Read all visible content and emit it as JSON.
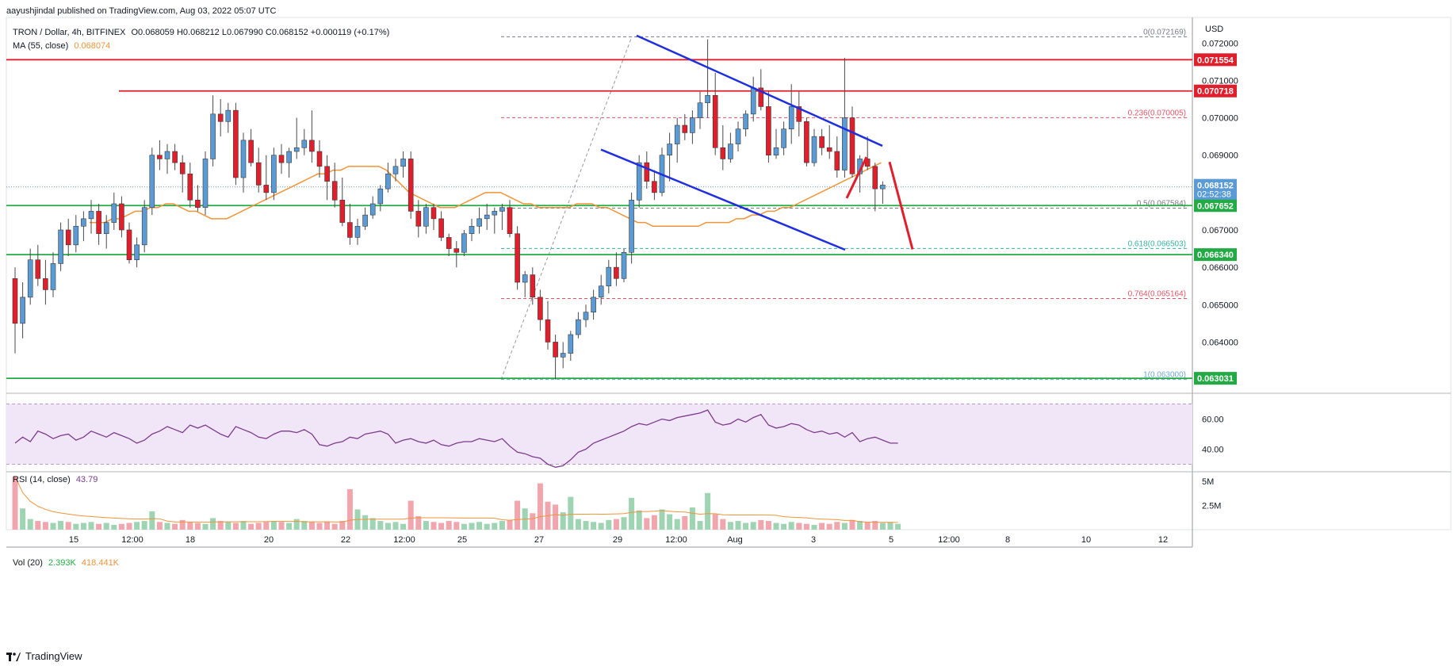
{
  "header": {
    "published": "aayushjindal published on TradingView.com, Aug 03, 2022 05:07 UTC"
  },
  "legend": {
    "symbol": "TRON / Dollar, 4h, BITFINEX",
    "ohlc": "O0.068059 H0.068212 L0.067990 C0.068152 +0.000119 (+0.17%)",
    "ma_label": "MA (55, close)",
    "ma_value": "0.068074",
    "rsi_label": "RSI (14, close)",
    "rsi_value": "43.79",
    "vol_label": "Vol (20)",
    "vol_value1": "2.393K",
    "vol_value2": "418.441K"
  },
  "footer": {
    "brand": "TradingView"
  },
  "colors": {
    "up": "#5b9bd5",
    "down": "#e01e2c",
    "ma": "#f0943a",
    "trend": "#1f2fe0",
    "support": "#22aa44",
    "resistance": "#e01e2c",
    "rsi": "#7b3b8c",
    "rsi_band": "#f1e6f8",
    "vol_up": "#9fd4b3",
    "vol_down": "#f1a6ad"
  },
  "chart_data": {
    "type": "candlestick",
    "symbol": "TRON / Dollar",
    "timeframe": "4h",
    "exchange": "BITFINEX",
    "currency": "USD",
    "ylim": [
      0.0628,
      0.0726
    ],
    "y_ticks": [
      "0.072000",
      "0.071000",
      "0.070000",
      "0.069000",
      "0.067000",
      "0.066000",
      "0.065000",
      "0.064000"
    ],
    "x_ticks": [
      "15",
      "12:00",
      "18",
      "20",
      "22",
      "12:00",
      "25",
      "27",
      "29",
      "12:00",
      "Aug",
      "3",
      "5",
      "12:00",
      "8",
      "10",
      "12"
    ],
    "candles": [
      [
        0.0657,
        0.066,
        0.0637,
        0.0645
      ],
      [
        0.0645,
        0.0656,
        0.0641,
        0.0652
      ],
      [
        0.0652,
        0.0665,
        0.065,
        0.0662
      ],
      [
        0.0662,
        0.0666,
        0.0655,
        0.0657
      ],
      [
        0.0657,
        0.0662,
        0.065,
        0.0654
      ],
      [
        0.0654,
        0.0664,
        0.0652,
        0.0661
      ],
      [
        0.0661,
        0.0672,
        0.0659,
        0.067
      ],
      [
        0.067,
        0.0673,
        0.0663,
        0.0666
      ],
      [
        0.0666,
        0.0674,
        0.0664,
        0.0671
      ],
      [
        0.0671,
        0.0675,
        0.0667,
        0.0673
      ],
      [
        0.0673,
        0.0678,
        0.0669,
        0.0675
      ],
      [
        0.0675,
        0.0677,
        0.0666,
        0.0669
      ],
      [
        0.0669,
        0.0674,
        0.0665,
        0.0672
      ],
      [
        0.0672,
        0.068,
        0.067,
        0.0677
      ],
      [
        0.0677,
        0.0679,
        0.0668,
        0.067
      ],
      [
        0.067,
        0.0672,
        0.0661,
        0.0662
      ],
      [
        0.0662,
        0.0668,
        0.066,
        0.0666
      ],
      [
        0.0666,
        0.0678,
        0.0664,
        0.0676
      ],
      [
        0.0676,
        0.0692,
        0.0674,
        0.069
      ],
      [
        0.069,
        0.0694,
        0.0686,
        0.0689
      ],
      [
        0.0689,
        0.0693,
        0.0685,
        0.0691
      ],
      [
        0.0691,
        0.0693,
        0.0686,
        0.0688
      ],
      [
        0.0688,
        0.069,
        0.068,
        0.0685
      ],
      [
        0.0685,
        0.0688,
        0.0676,
        0.0678
      ],
      [
        0.0678,
        0.0682,
        0.0675,
        0.0676
      ],
      [
        0.0676,
        0.0691,
        0.0674,
        0.0689
      ],
      [
        0.0689,
        0.0706,
        0.0687,
        0.0701
      ],
      [
        0.0701,
        0.0705,
        0.0695,
        0.0699
      ],
      [
        0.0699,
        0.0704,
        0.0696,
        0.0702
      ],
      [
        0.0702,
        0.0704,
        0.0682,
        0.0684
      ],
      [
        0.0684,
        0.0696,
        0.068,
        0.0694
      ],
      [
        0.0694,
        0.0697,
        0.0687,
        0.0688
      ],
      [
        0.0688,
        0.0692,
        0.068,
        0.0682
      ],
      [
        0.0682,
        0.069,
        0.0678,
        0.068
      ],
      [
        0.068,
        0.0692,
        0.0678,
        0.069
      ],
      [
        0.069,
        0.0693,
        0.0685,
        0.0688
      ],
      [
        0.0688,
        0.0692,
        0.0684,
        0.0691
      ],
      [
        0.0691,
        0.07,
        0.0689,
        0.0692
      ],
      [
        0.0692,
        0.0697,
        0.069,
        0.0694
      ],
      [
        0.0694,
        0.0702,
        0.0688,
        0.0691
      ],
      [
        0.0691,
        0.0694,
        0.0684,
        0.0687
      ],
      [
        0.0687,
        0.069,
        0.0678,
        0.0683
      ],
      [
        0.0683,
        0.0688,
        0.0676,
        0.0678
      ],
      [
        0.0678,
        0.0684,
        0.0671,
        0.0672
      ],
      [
        0.0672,
        0.0677,
        0.0666,
        0.0668
      ],
      [
        0.0668,
        0.0673,
        0.0666,
        0.0671
      ],
      [
        0.0671,
        0.0676,
        0.067,
        0.0674
      ],
      [
        0.0674,
        0.0679,
        0.0673,
        0.0677
      ],
      [
        0.0677,
        0.0682,
        0.0675,
        0.0681
      ],
      [
        0.0681,
        0.0688,
        0.068,
        0.0685
      ],
      [
        0.0685,
        0.0689,
        0.0683,
        0.0687
      ],
      [
        0.0687,
        0.0691,
        0.0684,
        0.0689
      ],
      [
        0.0689,
        0.0691,
        0.0673,
        0.0675
      ],
      [
        0.0675,
        0.0678,
        0.0668,
        0.0671
      ],
      [
        0.0671,
        0.0677,
        0.0669,
        0.0676
      ],
      [
        0.0676,
        0.0677,
        0.067,
        0.0673
      ],
      [
        0.0673,
        0.0675,
        0.0667,
        0.0668
      ],
      [
        0.0668,
        0.0669,
        0.0663,
        0.0665
      ],
      [
        0.0665,
        0.0667,
        0.066,
        0.0664
      ],
      [
        0.0664,
        0.067,
        0.0663,
        0.0669
      ],
      [
        0.0669,
        0.0673,
        0.0667,
        0.0671
      ],
      [
        0.0671,
        0.0676,
        0.0669,
        0.0673
      ],
      [
        0.0673,
        0.0677,
        0.067,
        0.0674
      ],
      [
        0.0674,
        0.0676,
        0.0669,
        0.0675
      ],
      [
        0.0675,
        0.0677,
        0.067,
        0.0676
      ],
      [
        0.0676,
        0.0678,
        0.0668,
        0.0669
      ],
      [
        0.0669,
        0.0671,
        0.0654,
        0.0656
      ],
      [
        0.0656,
        0.0659,
        0.0652,
        0.0658
      ],
      [
        0.0658,
        0.066,
        0.065,
        0.0652
      ],
      [
        0.0652,
        0.0654,
        0.0643,
        0.0646
      ],
      [
        0.0646,
        0.0651,
        0.0638,
        0.064
      ],
      [
        0.064,
        0.0642,
        0.063,
        0.0636
      ],
      [
        0.0636,
        0.064,
        0.0633,
        0.0637
      ],
      [
        0.0637,
        0.0643,
        0.0635,
        0.0642
      ],
      [
        0.0642,
        0.0648,
        0.0641,
        0.0646
      ],
      [
        0.0646,
        0.065,
        0.0644,
        0.0648
      ],
      [
        0.0648,
        0.0654,
        0.0646,
        0.0652
      ],
      [
        0.0652,
        0.0658,
        0.065,
        0.0655
      ],
      [
        0.0655,
        0.0662,
        0.0653,
        0.066
      ],
      [
        0.066,
        0.0664,
        0.0655,
        0.0657
      ],
      [
        0.0657,
        0.0665,
        0.0656,
        0.0664
      ],
      [
        0.0664,
        0.068,
        0.0661,
        0.0678
      ],
      [
        0.0678,
        0.069,
        0.0676,
        0.0688
      ],
      [
        0.0688,
        0.0691,
        0.0681,
        0.0683
      ],
      [
        0.0683,
        0.0686,
        0.0678,
        0.068
      ],
      [
        0.068,
        0.0692,
        0.0679,
        0.069
      ],
      [
        0.069,
        0.0696,
        0.0683,
        0.0693
      ],
      [
        0.0693,
        0.07,
        0.0688,
        0.0698
      ],
      [
        0.0698,
        0.0701,
        0.0694,
        0.0696
      ],
      [
        0.0696,
        0.0702,
        0.0693,
        0.07
      ],
      [
        0.07,
        0.0707,
        0.0697,
        0.0704
      ],
      [
        0.0704,
        0.0721,
        0.07,
        0.0706
      ],
      [
        0.0706,
        0.0712,
        0.069,
        0.0692
      ],
      [
        0.0692,
        0.0698,
        0.0686,
        0.0689
      ],
      [
        0.0689,
        0.0696,
        0.0688,
        0.0693
      ],
      [
        0.0693,
        0.0699,
        0.0691,
        0.0697
      ],
      [
        0.0697,
        0.0702,
        0.0695,
        0.0701
      ],
      [
        0.0701,
        0.0711,
        0.0699,
        0.0708
      ],
      [
        0.0708,
        0.0713,
        0.0702,
        0.0703
      ],
      [
        0.0703,
        0.0707,
        0.0688,
        0.069
      ],
      [
        0.069,
        0.0697,
        0.0689,
        0.0692
      ],
      [
        0.0692,
        0.0699,
        0.069,
        0.0697
      ],
      [
        0.0697,
        0.0709,
        0.0693,
        0.0703
      ],
      [
        0.0703,
        0.0707,
        0.0695,
        0.0699
      ],
      [
        0.0699,
        0.07,
        0.0687,
        0.0688
      ],
      [
        0.0688,
        0.0697,
        0.0687,
        0.0695
      ],
      [
        0.0695,
        0.0697,
        0.069,
        0.0692
      ],
      [
        0.0692,
        0.0698,
        0.0689,
        0.0691
      ],
      [
        0.0691,
        0.0695,
        0.0684,
        0.0686
      ],
      [
        0.0686,
        0.0716,
        0.0684,
        0.07
      ],
      [
        0.07,
        0.0703,
        0.0684,
        0.0685
      ],
      [
        0.0685,
        0.069,
        0.068,
        0.0689
      ],
      [
        0.0689,
        0.0695,
        0.0686,
        0.0687
      ],
      [
        0.0687,
        0.0688,
        0.0675,
        0.0681
      ],
      [
        0.0681,
        0.0683,
        0.0677,
        0.0682
      ]
    ],
    "ma_55": [
      0.0672,
      0.0672,
      0.0672,
      0.0673,
      0.0673,
      0.0674,
      0.0675,
      0.0675,
      0.0676,
      0.0676,
      0.0677,
      0.0677,
      0.0676,
      0.0675,
      0.0675,
      0.0674,
      0.0673,
      0.0673,
      0.0673,
      0.0674,
      0.0675,
      0.0676,
      0.0677,
      0.0678,
      0.0679,
      0.068,
      0.0681,
      0.0682,
      0.0683,
      0.0684,
      0.0685,
      0.0685,
      0.0686,
      0.0686,
      0.0687,
      0.0687,
      0.0687,
      0.0687,
      0.0687,
      0.0686,
      0.0684,
      0.0682,
      0.068,
      0.0679,
      0.0678,
      0.0677,
      0.0676,
      0.0676,
      0.0676,
      0.0677,
      0.0678,
      0.0679,
      0.068,
      0.068,
      0.068,
      0.0679,
      0.0678,
      0.0677,
      0.0677,
      0.0676,
      0.0676,
      0.0676,
      0.0676,
      0.0676,
      0.0677,
      0.0677,
      0.0677,
      0.0676,
      0.0676,
      0.0675,
      0.0674,
      0.0673,
      0.0672,
      0.0672,
      0.0671,
      0.0671,
      0.0671,
      0.0671,
      0.0671,
      0.0671,
      0.0671,
      0.0672,
      0.0672,
      0.0672,
      0.0672,
      0.0673,
      0.0673,
      0.0674,
      0.0674,
      0.0675,
      0.0675,
      0.0676,
      0.0676,
      0.0677,
      0.0678,
      0.0679,
      0.068,
      0.0681,
      0.0682,
      0.0683,
      0.0684,
      0.0685,
      0.0686,
      0.0687,
      0.0688
    ],
    "annotations": {
      "horizontal_levels": [
        {
          "label": "0.071554",
          "value": 0.071554,
          "kind": "resistance"
        },
        {
          "label": "0.070718",
          "value": 0.070718,
          "kind": "resistance"
        },
        {
          "label": "0.067652",
          "value": 0.067652,
          "kind": "support"
        },
        {
          "label": "0.066340",
          "value": 0.06634,
          "kind": "support"
        },
        {
          "label": "0.063031",
          "value": 0.063031,
          "kind": "support"
        }
      ],
      "fib_levels": [
        {
          "label": "0(0.072169)",
          "value": 0.072169
        },
        {
          "label": "0.236(0.070005)",
          "value": 0.070005
        },
        {
          "label": "0.5(0.067584)",
          "value": 0.067584
        },
        {
          "label": "0.618(0.066503)",
          "value": 0.066503
        },
        {
          "label": "0.764(0.065164)",
          "value": 0.065164
        },
        {
          "label": "1(0.063000)",
          "value": 0.063
        }
      ],
      "last_price": {
        "label": "0.068152",
        "countdown": "02:52:38",
        "value": 0.068152
      }
    },
    "rsi": {
      "ylim": [
        25,
        75
      ],
      "ticks": [
        "60.00",
        "40.00"
      ],
      "band": [
        30,
        70
      ],
      "values": [
        44,
        48,
        45,
        52,
        50,
        47,
        49,
        50,
        46,
        48,
        52,
        50,
        48,
        51,
        49,
        47,
        44,
        46,
        50,
        52,
        55,
        53,
        51,
        56,
        54,
        56,
        53,
        50,
        48,
        55,
        53,
        51,
        48,
        47,
        50,
        52,
        52,
        51,
        53,
        50,
        43,
        42,
        44,
        45,
        48,
        47,
        50,
        51,
        52,
        50,
        44,
        46,
        47,
        45,
        44,
        46,
        43,
        42,
        44,
        45,
        45,
        47,
        46,
        45,
        47,
        42,
        38,
        37,
        35,
        34,
        30,
        28,
        29,
        33,
        38,
        40,
        44,
        46,
        48,
        50,
        52,
        55,
        57,
        56,
        58,
        60,
        59,
        61,
        62,
        63,
        64,
        66,
        58,
        56,
        57,
        60,
        58,
        61,
        63,
        56,
        54,
        55,
        57,
        56,
        53,
        51,
        52,
        50,
        51,
        48,
        51,
        45,
        47,
        48,
        46,
        44,
        44
      ]
    },
    "volume": {
      "ylim": [
        0,
        6
      ],
      "ticks": [
        "5M",
        "2.5M"
      ],
      "values": [
        5.5,
        2.2,
        1.1,
        0.9,
        0.8,
        0.7,
        0.9,
        0.8,
        0.6,
        0.7,
        0.8,
        0.6,
        0.7,
        0.5,
        0.6,
        0.7,
        0.8,
        0.9,
        1.9,
        0.8,
        0.7,
        0.6,
        1.0,
        0.8,
        0.7,
        0.6,
        1.2,
        0.9,
        0.8,
        0.7,
        0.9,
        0.6,
        0.7,
        0.8,
        0.9,
        0.8,
        0.7,
        1.1,
        0.9,
        0.8,
        0.7,
        0.8,
        0.6,
        0.9,
        4.2,
        2.1,
        1.5,
        1.2,
        0.9,
        0.7,
        0.8,
        0.6,
        3.0,
        1.4,
        0.9,
        0.8,
        0.7,
        0.9,
        0.8,
        0.6,
        0.7,
        0.8,
        0.6,
        0.7,
        0.9,
        1.0,
        3.0,
        2.2,
        1.7,
        4.8,
        2.9,
        2.6,
        1.8,
        3.4,
        1.1,
        0.9,
        0.8,
        0.7,
        1.0,
        1.1,
        1.3,
        3.3,
        2.0,
        1.2,
        1.5,
        2.1,
        1.6,
        1.1,
        1.4,
        2.3,
        0.9,
        3.8,
        1.6,
        1.1,
        0.8,
        0.9,
        0.7,
        0.8,
        1.0,
        0.9,
        0.7,
        0.6,
        0.8,
        0.7,
        0.6,
        0.5,
        0.7,
        0.6,
        0.8,
        0.7,
        1.0,
        0.9,
        0.8,
        0.9,
        0.7,
        0.8,
        0.6
      ]
    }
  }
}
